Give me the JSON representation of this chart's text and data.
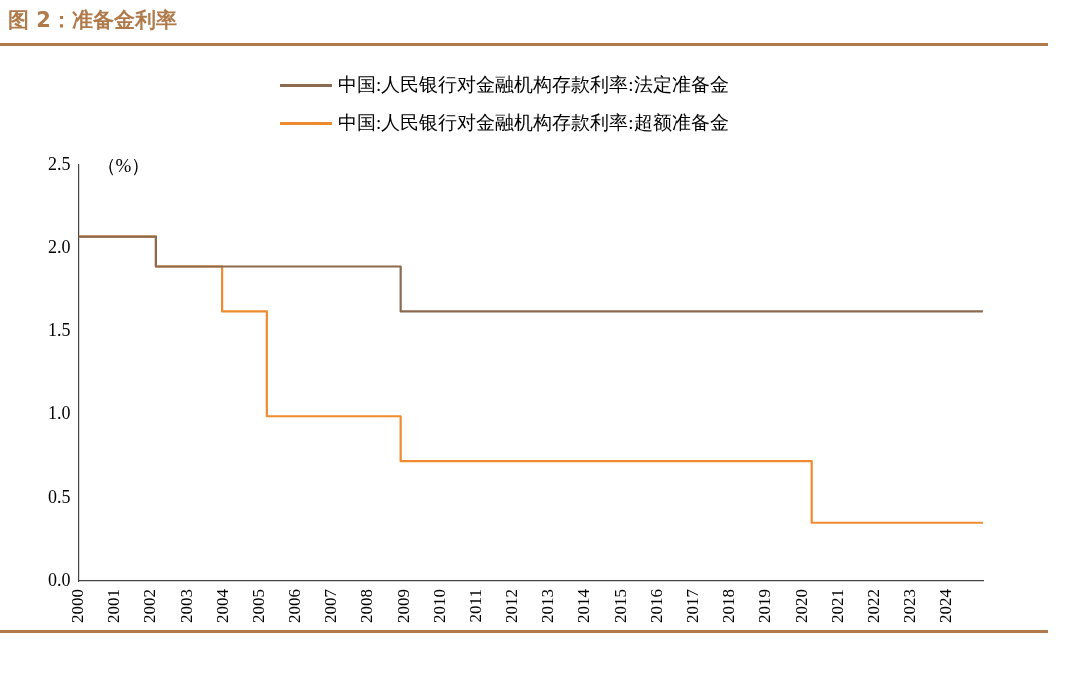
{
  "chart_data": {
    "type": "step",
    "title": "图 2：准备金利率",
    "ylabel": "（%）",
    "series": [
      {
        "name": "中国:人民银行对金融机构存款利率:法定准备金",
        "color": "#8b6a4f",
        "x": [
          "2000-01-01",
          "2002-02-21",
          "2008-11-27",
          "2024-12-31"
        ],
        "values": [
          2.07,
          1.89,
          1.62,
          1.62
        ]
      },
      {
        "name": "中国:人民银行对金融机构存款利率:超额准备金",
        "color": "#f08a2f",
        "x": [
          "2000-01-01",
          "2002-02-21",
          "2003-12-21",
          "2005-03-17",
          "2008-11-27",
          "2020-04-07",
          "2024-12-31"
        ],
        "values": [
          2.07,
          1.89,
          1.62,
          0.99,
          0.72,
          0.35,
          0.35
        ]
      }
    ],
    "xlim": [
      "2000-01-01",
      "2025-01-01"
    ],
    "xticks": [
      "2000",
      "2001",
      "2002",
      "2003",
      "2004",
      "2005",
      "2006",
      "2007",
      "2008",
      "2009",
      "2010",
      "2011",
      "2012",
      "2013",
      "2014",
      "2015",
      "2016",
      "2017",
      "2018",
      "2019",
      "2020",
      "2021",
      "2022",
      "2023",
      "2024"
    ],
    "ylim": [
      0,
      2.5
    ],
    "yticks": [
      {
        "value": 0,
        "label": "0.0"
      },
      {
        "value": 0.5,
        "label": "0.5"
      },
      {
        "value": 1,
        "label": "1.0"
      },
      {
        "value": 1.5,
        "label": "1.5"
      },
      {
        "value": 2,
        "label": "2.0"
      },
      {
        "value": 2.5,
        "label": "2.5"
      }
    ],
    "grid": false,
    "legend": "top",
    "line_style": "solid",
    "marker": "none"
  }
}
